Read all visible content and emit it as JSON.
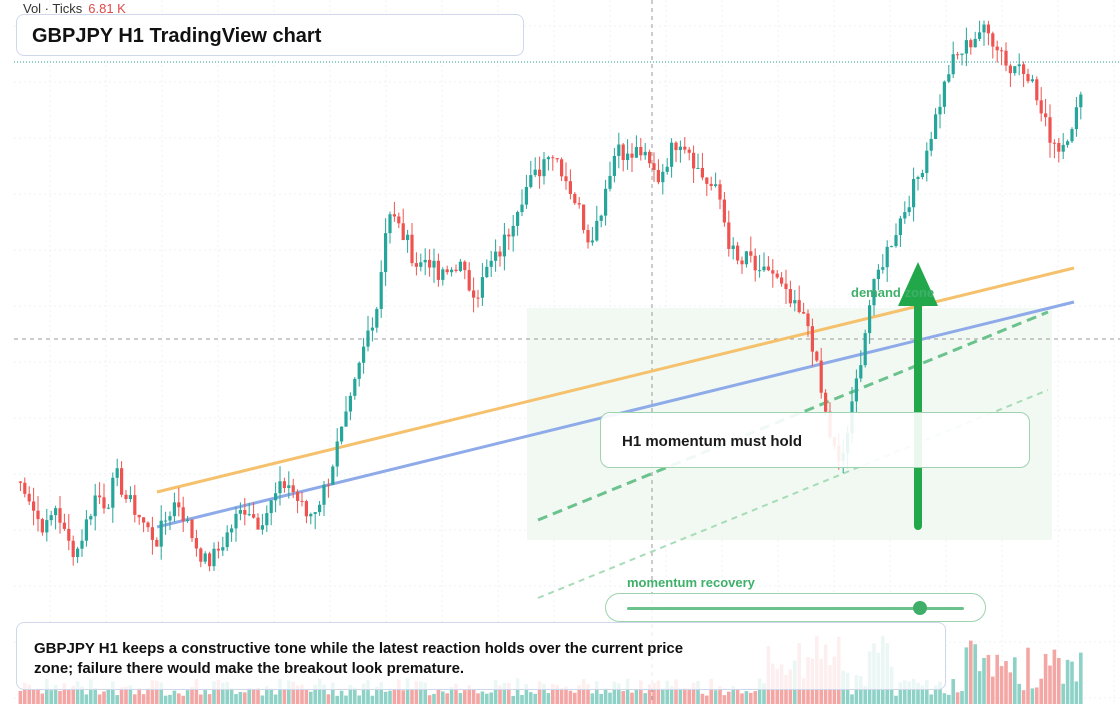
{
  "header": {
    "vol_label": "Vol · Ticks",
    "vol_value": "6.81 K"
  },
  "title": "GBPJPY H1 TradingView chart",
  "annotations": {
    "demand_label": "demand zone",
    "callout": "H1 momentum must hold",
    "momentum_label": "momentum recovery",
    "momentum_level": 0.87
  },
  "note": "GBPJPY H1 keeps a constructive tone while the latest reaction holds over the current price zone; failure there would make the breakout look premature.",
  "colors": {
    "up": "#26a69a",
    "down": "#ef5350",
    "vol_up": "#8ed1c6",
    "vol_down": "#f3a6a4",
    "orange_line": "#f5c16c",
    "blue_line": "#8eaae8",
    "green": "#22a84a",
    "zone": "#e9f7ec"
  },
  "chart_data": {
    "type": "candlestick",
    "title": "GBPJPY H1 TradingView chart",
    "y_axis": {
      "min": 0,
      "max": 100
    },
    "description_note": "",
    "path": [
      22,
      21,
      16,
      14,
      18,
      12,
      10,
      15,
      20,
      18,
      23,
      19,
      17,
      14,
      12,
      16,
      19,
      15,
      11,
      8,
      10,
      13,
      16,
      18,
      15,
      17,
      20,
      22,
      19,
      16,
      18,
      22,
      28,
      33,
      40,
      47,
      52,
      68,
      65,
      62,
      58,
      60,
      56,
      57,
      59,
      55,
      54,
      58,
      60,
      64,
      69,
      72,
      74,
      78,
      76,
      72,
      68,
      63,
      66,
      74,
      79,
      76,
      78,
      75,
      73,
      77,
      80,
      78,
      74,
      72,
      70,
      62,
      58,
      60,
      56,
      58,
      55,
      52,
      50,
      48,
      38,
      30,
      24,
      32,
      42,
      52,
      58,
      62,
      66,
      70,
      74,
      80,
      86,
      92,
      94,
      96,
      98,
      97,
      95,
      91,
      93,
      90,
      84,
      80,
      78,
      82,
      86
    ]
  }
}
